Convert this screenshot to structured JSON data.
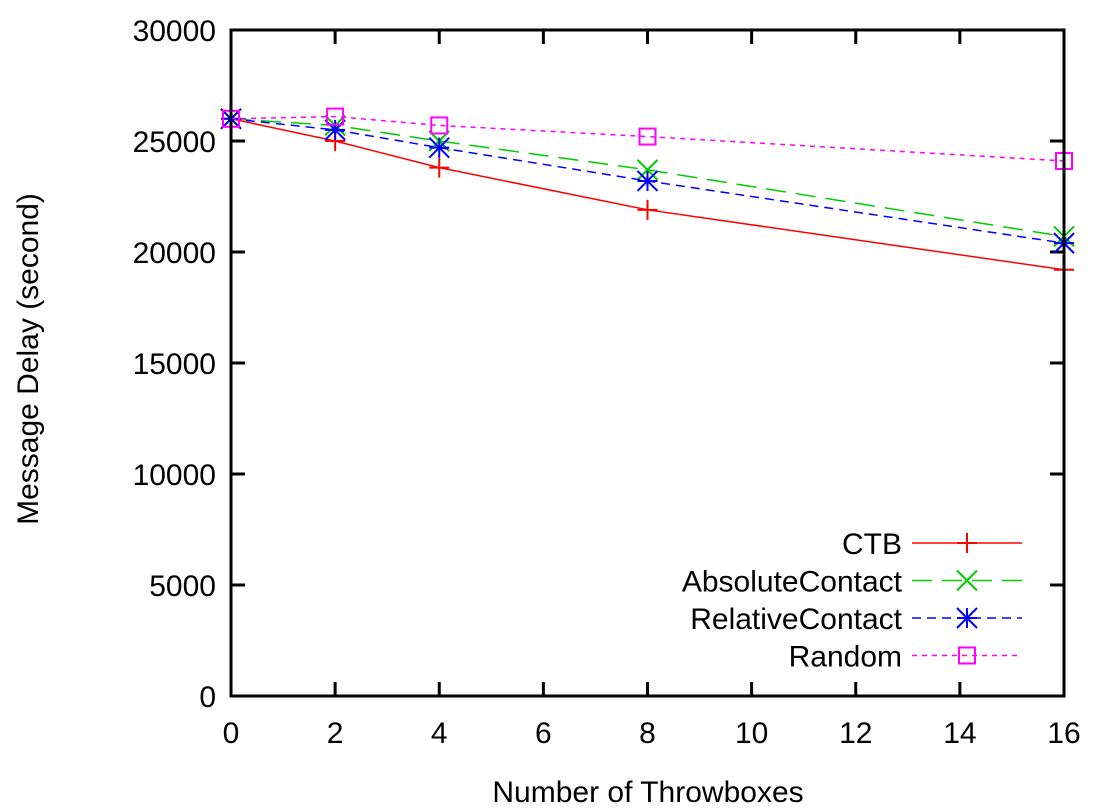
{
  "chart_data": {
    "type": "line",
    "xlabel": "Number of Throwboxes",
    "ylabel": "Message Delay (second)",
    "xlim": [
      0,
      16
    ],
    "ylim": [
      0,
      30000
    ],
    "xticks": [
      0,
      2,
      4,
      6,
      8,
      10,
      12,
      14,
      16
    ],
    "yticks": [
      0,
      5000,
      10000,
      15000,
      20000,
      25000,
      30000
    ],
    "x": [
      0,
      2,
      4,
      8,
      16
    ],
    "grid": false,
    "legend_position": "bottom-right",
    "series": [
      {
        "name": "CTB",
        "values": [
          26000,
          25000,
          23800,
          21900,
          19200
        ],
        "color": "#ff0000",
        "marker": "plus",
        "dash": "solid"
      },
      {
        "name": "AbsoluteContact",
        "values": [
          26000,
          25700,
          25000,
          23700,
          20700
        ],
        "color": "#00cc00",
        "marker": "cross",
        "dash": "long"
      },
      {
        "name": "RelativeContact",
        "values": [
          26000,
          25500,
          24700,
          23200,
          20400
        ],
        "color": "#0000ff",
        "marker": "star",
        "dash": "short"
      },
      {
        "name": "Random",
        "values": [
          26000,
          26100,
          25700,
          25200,
          24100
        ],
        "color": "#ff00ff",
        "marker": "square",
        "dash": "dotted"
      }
    ]
  }
}
